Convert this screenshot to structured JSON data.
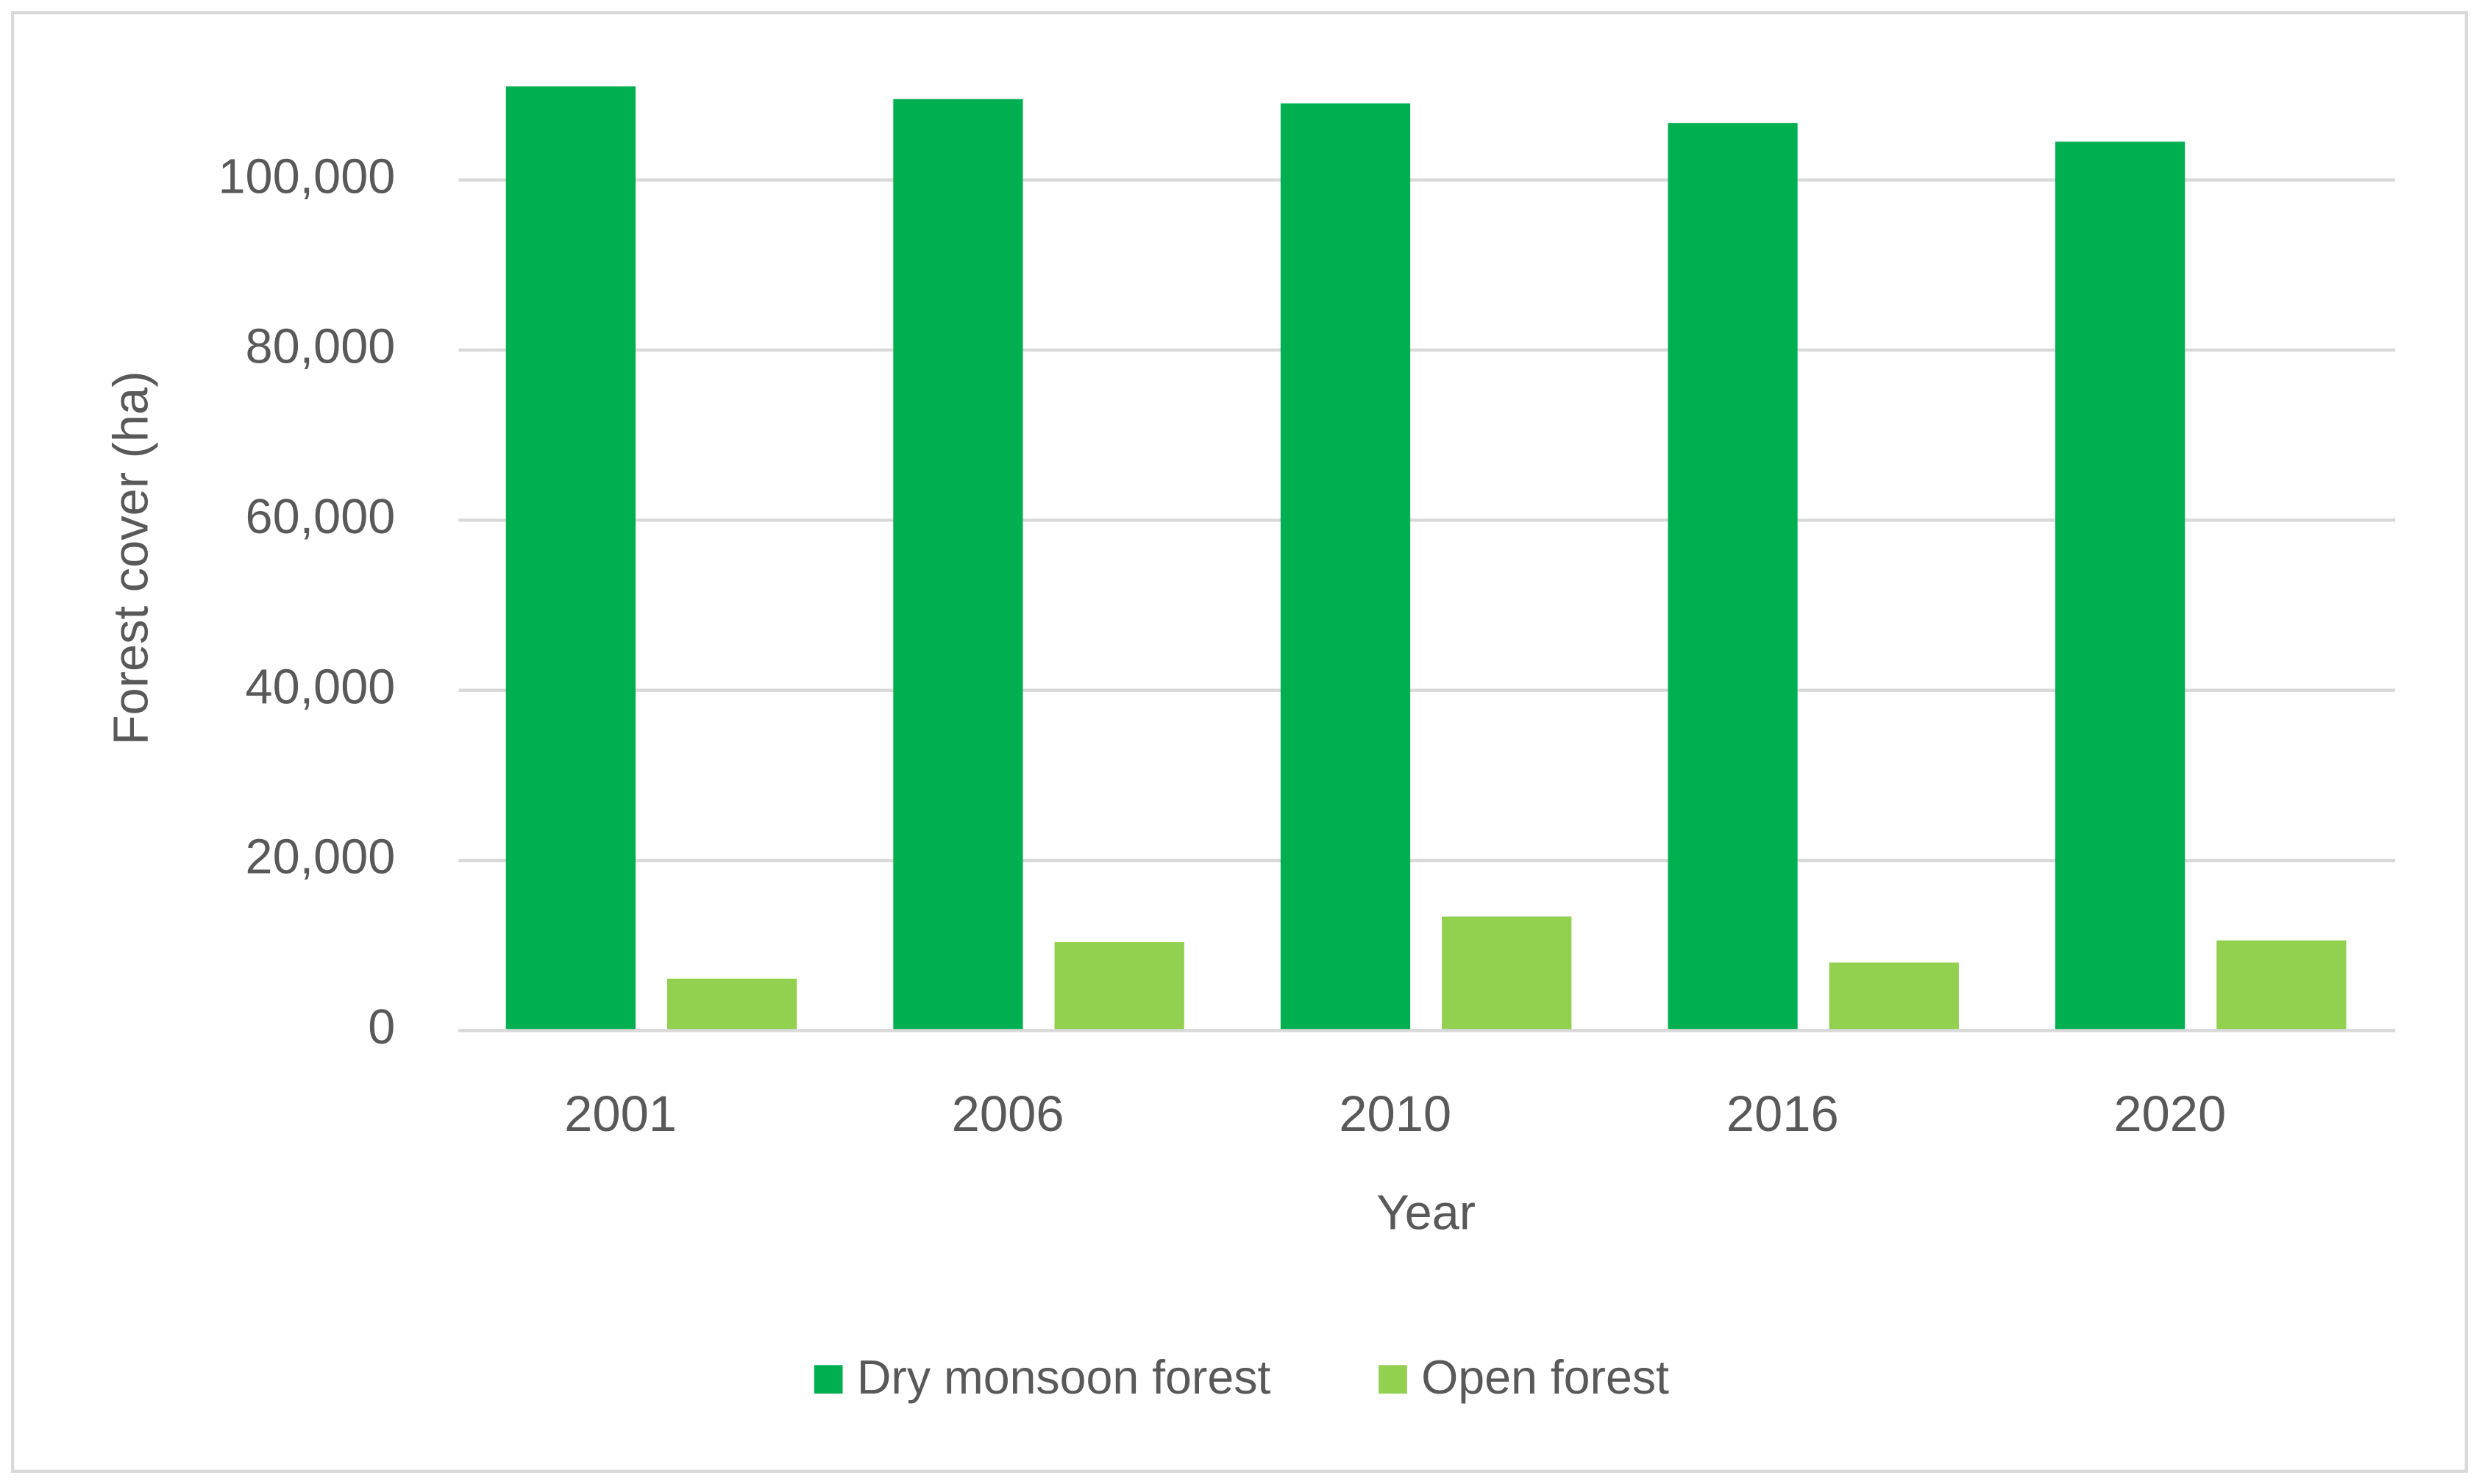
{
  "chart_data": {
    "type": "bar",
    "x_label": "Year",
    "y_label": "Forest cover (ha)",
    "categories": [
      "2001",
      "2006",
      "2010",
      "2016",
      "2020"
    ],
    "series": [
      {
        "name": "Dry monsoon forest",
        "color": "#00b050",
        "values": [
          111000,
          109500,
          109000,
          106700,
          104500
        ]
      },
      {
        "name": "Open forest",
        "color": "#92d050",
        "values": [
          6100,
          10400,
          13400,
          8000,
          10600
        ]
      }
    ],
    "ylim": [
      0,
      115000
    ],
    "yticks": [
      0,
      {
        "value": 20000,
        "label": "20,000"
      },
      {
        "value": 40000,
        "label": "40,000"
      },
      {
        "value": 60000,
        "label": "60,000"
      },
      {
        "value": 80000,
        "label": "80,000"
      },
      {
        "value": 100000,
        "label": "100,000"
      }
    ],
    "grid": true,
    "legend": "bottom"
  }
}
